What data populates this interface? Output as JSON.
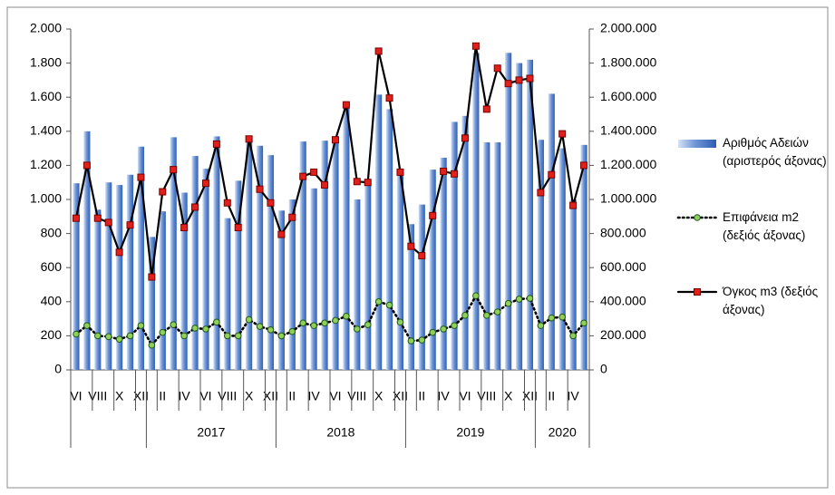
{
  "chart_data": {
    "type": "combo",
    "categories": [
      "VI",
      null,
      "VIII",
      null,
      "X",
      null,
      "XII",
      null,
      "II",
      null,
      "IV",
      null,
      "VI",
      null,
      "VIII",
      null,
      "X",
      null,
      "XII",
      null,
      "II",
      null,
      "IV",
      null,
      "VI",
      null,
      "VIII",
      null,
      "X",
      null,
      "XII",
      null,
      "II",
      null,
      "IV",
      null,
      "VI",
      null,
      "VIII",
      null,
      "X",
      null,
      "XII",
      null,
      "II",
      null,
      "IV",
      null
    ],
    "x_groups": [
      {
        "span": 7
      },
      {
        "label": "2017",
        "span": 12
      },
      {
        "label": "2018",
        "span": 12
      },
      {
        "label": "2019",
        "span": 12
      },
      {
        "label": "2020",
        "span": 5
      }
    ],
    "series": [
      {
        "name": "Αριθμός Αδειών (αριστερός άξονας)",
        "type": "bar",
        "color": "#2f5fb3",
        "values": [
          1095,
          1400,
          940,
          1100,
          1085,
          1145,
          1310,
          780,
          930,
          1365,
          1040,
          1255,
          1180,
          1370,
          890,
          1110,
          1340,
          1315,
          1260,
          935,
          1000,
          1340,
          1065,
          1345,
          1370,
          1540,
          1000,
          1110,
          1615,
          1530,
          1160,
          855,
          970,
          1175,
          1245,
          1455,
          1490,
          1860,
          1335,
          1335,
          1860,
          1800,
          1820,
          1350,
          1620,
          1300,
          1000,
          1320
        ]
      },
      {
        "name": "Επιφάνεια m2 (δεξιός άξονας)",
        "type": "line",
        "axis": "y2",
        "color": "#000000",
        "marker": "circle",
        "marker_color": "#8fcf5a",
        "dashed": true,
        "values": [
          210000,
          260000,
          200000,
          195000,
          180000,
          200000,
          260000,
          145000,
          220000,
          265000,
          200000,
          245000,
          240000,
          280000,
          200000,
          200000,
          295000,
          255000,
          235000,
          200000,
          225000,
          275000,
          260000,
          275000,
          290000,
          315000,
          240000,
          265000,
          400000,
          380000,
          280000,
          170000,
          175000,
          220000,
          240000,
          260000,
          320000,
          435000,
          320000,
          340000,
          390000,
          415000,
          420000,
          260000,
          305000,
          310000,
          200000,
          275000
        ]
      },
      {
        "name": "Όγκος m3 (δεξιός άξονας)",
        "type": "line",
        "axis": "y2",
        "color": "#000000",
        "marker": "square",
        "marker_color": "#e0201b",
        "dashed": false,
        "values": [
          890000,
          1200000,
          890000,
          865000,
          690000,
          850000,
          1130000,
          545000,
          1045000,
          1175000,
          835000,
          955000,
          1095000,
          1325000,
          980000,
          835000,
          1355000,
          1060000,
          980000,
          795000,
          895000,
          1135000,
          1160000,
          1085000,
          1350000,
          1555000,
          1105000,
          1100000,
          1870000,
          1595000,
          1160000,
          725000,
          670000,
          905000,
          1165000,
          1150000,
          1360000,
          1900000,
          1530000,
          1770000,
          1680000,
          1700000,
          1710000,
          1040000,
          1145000,
          1385000,
          965000,
          1200000
        ]
      }
    ],
    "ylim": [
      0,
      2000
    ],
    "yticks": [
      0,
      200,
      400,
      600,
      800,
      {
        "value": 1000,
        "label": "1.000"
      },
      {
        "value": 1200,
        "label": "1.200"
      },
      {
        "value": 1400,
        "label": "1.400"
      },
      {
        "value": 1600,
        "label": "1.600"
      },
      {
        "value": 1800,
        "label": "1.800"
      },
      {
        "value": 2000,
        "label": "2.000"
      }
    ],
    "y2lim": [
      0,
      2000000
    ],
    "y2ticks": [
      0,
      {
        "value": 200000,
        "label": "200.000"
      },
      {
        "value": 400000,
        "label": "400.000"
      },
      {
        "value": 600000,
        "label": "600.000"
      },
      {
        "value": 800000,
        "label": "800.000"
      },
      {
        "value": 1000000,
        "label": "1.000.000"
      },
      {
        "value": 1200000,
        "label": "1.200.000"
      },
      {
        "value": 1400000,
        "label": "1.400.000"
      },
      {
        "value": 1600000,
        "label": "1.600.000"
      },
      {
        "value": 1800000,
        "label": "1.800.000"
      },
      {
        "value": 2000000,
        "label": "2.000.000"
      }
    ],
    "grid": false,
    "legend": "right"
  }
}
